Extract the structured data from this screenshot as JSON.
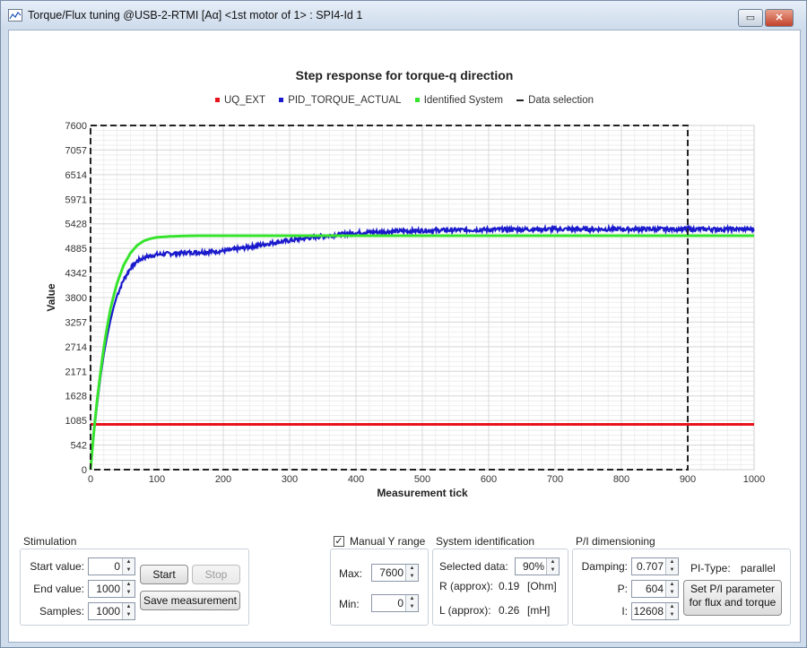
{
  "window": {
    "title": "Torque/Flux tuning @USB-2-RTMI [Aα] <1st motor of 1> : SPI4-Id 1",
    "restore_label": "▭",
    "close_label": "✕"
  },
  "colors": {
    "uq_ext": "#e8141b",
    "pid_torque_actual": "#1a1acc",
    "identified_system": "#37e42d",
    "data_selection": "#222222"
  },
  "chart_data": {
    "type": "line",
    "title": "Step response for torque-q direction",
    "xlabel": "Measurement tick",
    "ylabel": "Value",
    "xlim": [
      0,
      1000
    ],
    "ylim": [
      0,
      7600
    ],
    "x_ticks": [
      "0",
      "100",
      "200",
      "300",
      "400",
      "500",
      "600",
      "700",
      "800",
      "900",
      "1000"
    ],
    "y_ticks": [
      "0",
      "542",
      "1085",
      "1628",
      "2171",
      "2714",
      "3257",
      "3800",
      "4342",
      "4885",
      "5428",
      "5971",
      "6514",
      "7057",
      "7600"
    ],
    "grid": true,
    "legend_position": "top-center",
    "series": [
      {
        "name": "UQ_EXT",
        "x": [
          0,
          1000
        ],
        "values": [
          1000,
          1000
        ]
      },
      {
        "name": "PID_TORQUE_ACTUAL",
        "x": [
          0,
          5,
          10,
          15,
          20,
          25,
          30,
          35,
          40,
          50,
          60,
          70,
          80,
          90,
          100,
          120,
          140,
          160,
          180,
          200,
          220,
          240,
          260,
          280,
          300,
          320,
          340,
          360,
          380,
          400,
          450,
          500,
          550,
          600,
          650,
          700,
          750,
          800,
          850,
          900,
          950,
          1000
        ],
        "values": [
          0,
          800,
          1450,
          2050,
          2550,
          2950,
          3300,
          3600,
          3850,
          4200,
          4450,
          4600,
          4680,
          4720,
          4750,
          4770,
          4790,
          4800,
          4810,
          4830,
          4870,
          4920,
          4970,
          5020,
          5060,
          5100,
          5140,
          5170,
          5200,
          5230,
          5260,
          5280,
          5290,
          5300,
          5305,
          5310,
          5310,
          5310,
          5310,
          5310,
          5310,
          5310
        ]
      },
      {
        "name": "Identified System",
        "x": [
          0,
          5,
          10,
          15,
          20,
          25,
          30,
          35,
          40,
          50,
          60,
          70,
          80,
          90,
          100,
          120,
          140,
          160,
          180,
          200,
          250,
          300,
          400,
          500,
          600,
          700,
          800,
          900,
          1000
        ],
        "values": [
          0,
          850,
          1550,
          2150,
          2700,
          3150,
          3550,
          3850,
          4120,
          4520,
          4780,
          4950,
          5050,
          5100,
          5130,
          5150,
          5160,
          5165,
          5165,
          5165,
          5165,
          5165,
          5165,
          5165,
          5165,
          5165,
          5165,
          5165,
          5165
        ]
      },
      {
        "name": "Data selection",
        "x_range": [
          0,
          900
        ],
        "y_range": [
          0,
          7600
        ]
      }
    ]
  },
  "stimulation": {
    "title": "Stimulation",
    "start_value_label": "Start value:",
    "start_value": "0",
    "end_value_label": "End value:",
    "end_value": "1000",
    "samples_label": "Samples:",
    "samples": "1000",
    "start_button": "Start",
    "stop_button": "Stop",
    "save_button": "Save measurement"
  },
  "yrange": {
    "checkbox_label": "Manual Y  range",
    "checked": true,
    "check_glyph": "✓",
    "max_label": "Max:",
    "max": "7600",
    "min_label": "Min:",
    "min": "0"
  },
  "sysid": {
    "title": "System identification",
    "selected_label": "Selected data:",
    "selected": "90%",
    "r_label": "R (approx):",
    "r_value": "0.19",
    "r_unit": "[Ohm]",
    "l_label": "L (approx):",
    "l_value": "0.26",
    "l_unit": "[mH]"
  },
  "pi": {
    "title": "P/I dimensioning",
    "damping_label": "Damping:",
    "damping": "0.707",
    "p_label": "P:",
    "p": "604",
    "i_label": "I:",
    "i": "12608",
    "type_label": "PI-Type:",
    "type_value": "parallel",
    "set_button_line1": "Set P/I parameter",
    "set_button_line2": "for flux and torque"
  }
}
